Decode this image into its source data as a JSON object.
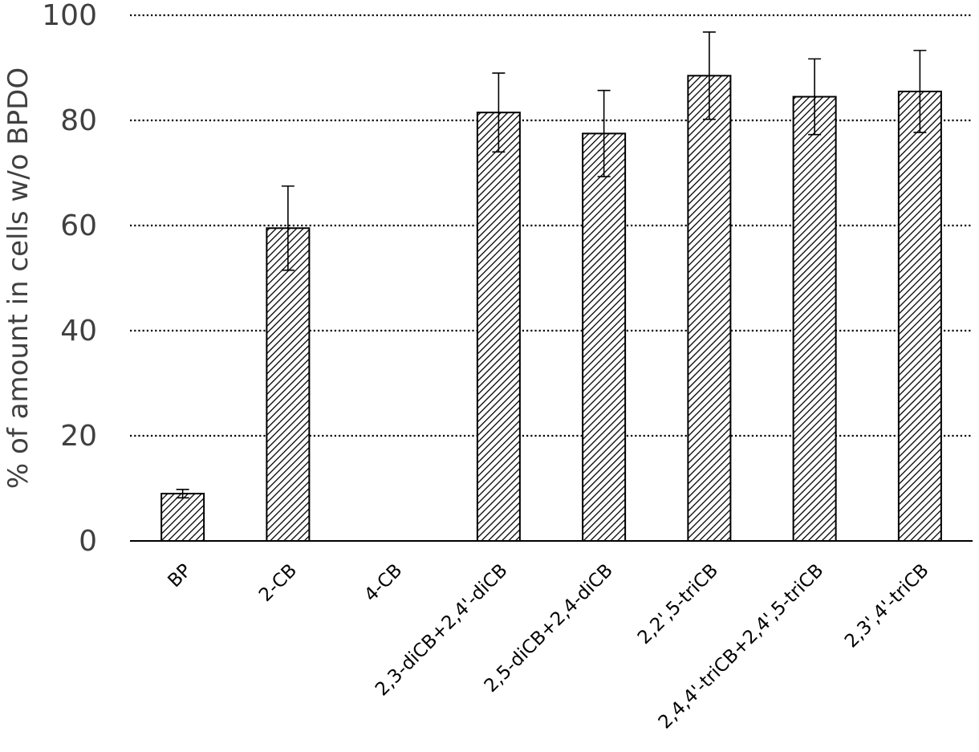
{
  "chart_data": {
    "type": "bar",
    "title": "",
    "xlabel": "",
    "ylabel": "% of amount in cells w/o BPDO",
    "ylim": [
      0,
      100
    ],
    "yticks": [
      0,
      20,
      40,
      60,
      80,
      100
    ],
    "grid": true,
    "grid_style": "dotted horizontal",
    "bar_fill": "diagonal hatch",
    "colors": {
      "bar_stroke": "#000000",
      "hatch": "#000000",
      "grid": "#000000",
      "axis_text": "#404040"
    },
    "categories": [
      "BP",
      "2-CB",
      "4-CB",
      "2,3-diCB+2,4'-diCB",
      "2,5-diCB+2,4-diCB",
      "2,2',5-triCB",
      "2,4,4'-triCB+2,4',5-triCB",
      "2,3',4'-triCB"
    ],
    "values": [
      9,
      59.5,
      null,
      81.5,
      77.5,
      88.5,
      84.5,
      85.5
    ],
    "errors": [
      0.8,
      8,
      null,
      7.5,
      8.2,
      8.3,
      7.2,
      7.8
    ]
  }
}
